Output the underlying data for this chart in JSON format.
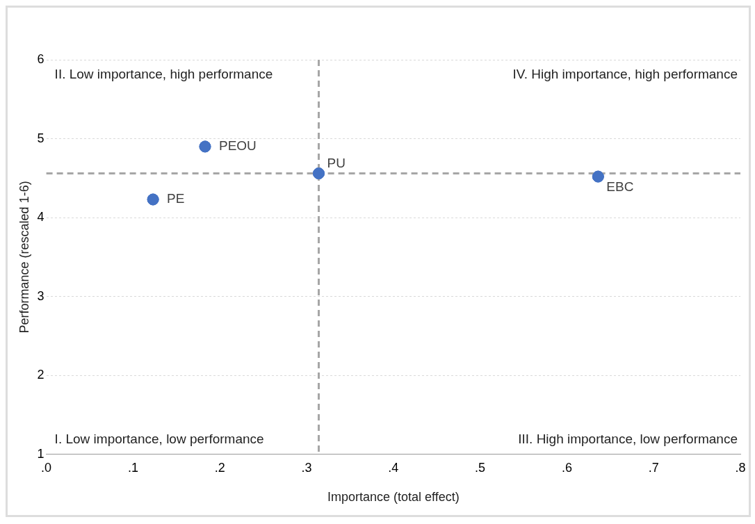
{
  "chart_data": {
    "type": "scatter",
    "xlabel": "Importance (total effect)",
    "ylabel": "Performance (rescaled 1-6)",
    "x": [
      0.123,
      0.183,
      0.314,
      0.636
    ],
    "series": [
      {
        "color": "#4472c4",
        "values": [
          4.23,
          4.9,
          4.56,
          4.52
        ]
      }
    ],
    "marker": "circle",
    "xlim": [
      0,
      0.8
    ],
    "xticks": [
      {
        "value": 0,
        "label": ".0"
      },
      {
        "value": 0.1,
        "label": ".1"
      },
      {
        "value": 0.2,
        "label": ".2"
      },
      {
        "value": 0.3,
        "label": ".3"
      },
      {
        "value": 0.4,
        "label": ".4"
      },
      {
        "value": 0.5,
        "label": ".5"
      },
      {
        "value": 0.6,
        "label": ".6"
      },
      {
        "value": 0.7,
        "label": ".7"
      },
      {
        "value": 0.8,
        "label": ".8"
      }
    ],
    "ylim": [
      1,
      6
    ],
    "yticks": [
      1,
      2,
      3,
      4,
      5,
      6
    ],
    "grid": "y",
    "legend": false,
    "ref_lines": [
      {
        "axis": "x",
        "value": 0.314,
        "color": "#a6a6a6",
        "line_style": "dashed"
      },
      {
        "axis": "y",
        "value": 4.56,
        "color": "#a6a6a6",
        "line_style": "dashed"
      }
    ],
    "annotations": [
      "II. Low importance, high performance",
      "IV. High importance, high performance",
      "I. Low importance, low performance",
      "III. High importance, low performance",
      {
        "text": "PE",
        "x": 0.123,
        "y": 4.23
      },
      {
        "text": "PEOU",
        "x": 0.183,
        "y": 4.9
      },
      {
        "text": "PU",
        "x": 0.314,
        "y": 4.56
      },
      {
        "text": "EBC",
        "x": 0.636,
        "y": 4.52
      }
    ]
  }
}
